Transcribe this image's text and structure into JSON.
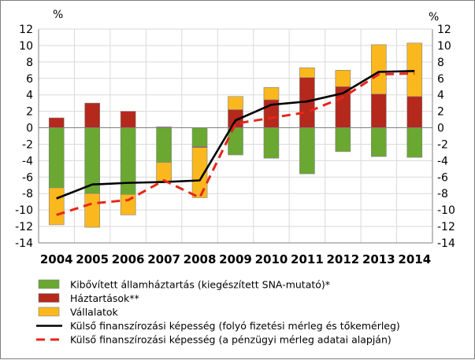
{
  "chart_data": {
    "type": "bar",
    "stacked": true,
    "left_unit": "%",
    "right_unit": "%",
    "ylim": [
      -14,
      12
    ],
    "ytick_step": 2,
    "grid": true,
    "legend_position": "bottom",
    "categories": [
      "2004",
      "2005",
      "2006",
      "2007",
      "2008",
      "2009",
      "2010",
      "2011",
      "2012",
      "2013",
      "2014"
    ],
    "series": [
      {
        "name": "Kibővített államháztartás (kiegészített SNA-mutató)*",
        "kind": "bar",
        "color": "#6aa832",
        "values": [
          -7.3,
          -8.0,
          -8.1,
          -4.2,
          -2.3,
          -3.3,
          -3.7,
          -5.6,
          -2.9,
          -3.5,
          -3.6
        ]
      },
      {
        "name": "Háztartások**",
        "kind": "bar",
        "color": "#b5281c",
        "values": [
          1.2,
          3.0,
          2.0,
          0.1,
          -0.1,
          2.2,
          3.4,
          6.1,
          5.0,
          4.1,
          3.8
        ]
      },
      {
        "name": "Vállalatok",
        "kind": "bar",
        "color": "#fbb81e",
        "values": [
          -4.5,
          -4.1,
          -2.5,
          -2.3,
          -6.1,
          1.6,
          1.5,
          1.2,
          2.0,
          6.0,
          6.5
        ]
      },
      {
        "name": "Külső finanszírozási képesség (folyó fizetési mérleg és tőkemérleg)",
        "kind": "line",
        "color": "#000000",
        "dash": false,
        "values": [
          -8.6,
          -6.9,
          -6.7,
          -6.6,
          -6.4,
          0.9,
          2.8,
          3.2,
          4.2,
          6.8,
          6.9
        ]
      },
      {
        "name": "Külső finanszírozási képesség (a pénzügyi mérleg adatai alapján)",
        "kind": "line",
        "color": "#e8251a",
        "dash": true,
        "values": [
          -10.6,
          -9.2,
          -8.8,
          -6.4,
          -8.5,
          0.5,
          1.2,
          1.9,
          3.7,
          6.5,
          6.6
        ]
      }
    ]
  }
}
